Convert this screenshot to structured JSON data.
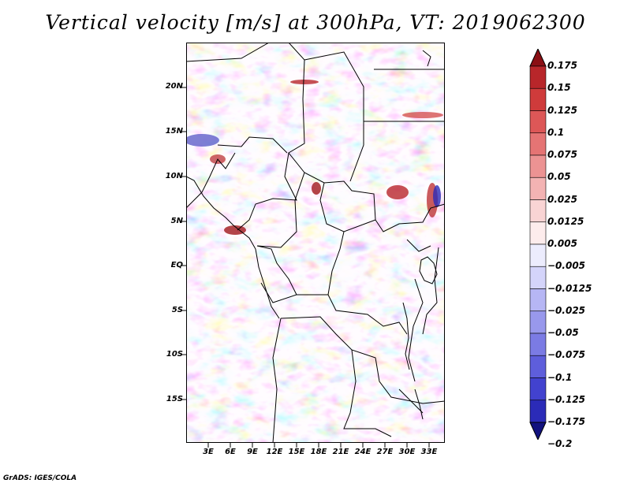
{
  "title": "Vertical velocity [m/s] at 300hPa, VT: 2019062300",
  "lat_labels": [
    "20N",
    "15N",
    "10N",
    "5N",
    "EQ",
    "5S",
    "10S",
    "15S"
  ],
  "lon_labels": [
    "3E",
    "6E",
    "9E",
    "12E",
    "15E",
    "18E",
    "21E",
    "24E",
    "27E",
    "30E",
    "33E"
  ],
  "legend": {
    "labels": [
      "0.175",
      "0.15",
      "0.125",
      "0.1",
      "0.075",
      "0.05",
      "0.025",
      "0.0125",
      "0.005",
      "−0.005",
      "−0.0125",
      "−0.025",
      "−0.05",
      "−0.075",
      "−0.1",
      "−0.125",
      "−0.175",
      "−0.2"
    ],
    "colors": [
      "#a0161a",
      "#b8262a",
      "#cf3b3b",
      "#dd5757",
      "#e57474",
      "#ec9393",
      "#f3b3b3",
      "#f9d4d4",
      "#fdecec",
      "#ececfd",
      "#d4d4fa",
      "#b6b6f4",
      "#9898ec",
      "#7b7be4",
      "#5e5edb",
      "#4242cf",
      "#2b2bb8",
      "#1a1a9a"
    ],
    "top_triangle_color": "#8a0f14",
    "bottom_triangle_color": "#12127e"
  },
  "footer": "GrADS: IGES/COLA"
}
